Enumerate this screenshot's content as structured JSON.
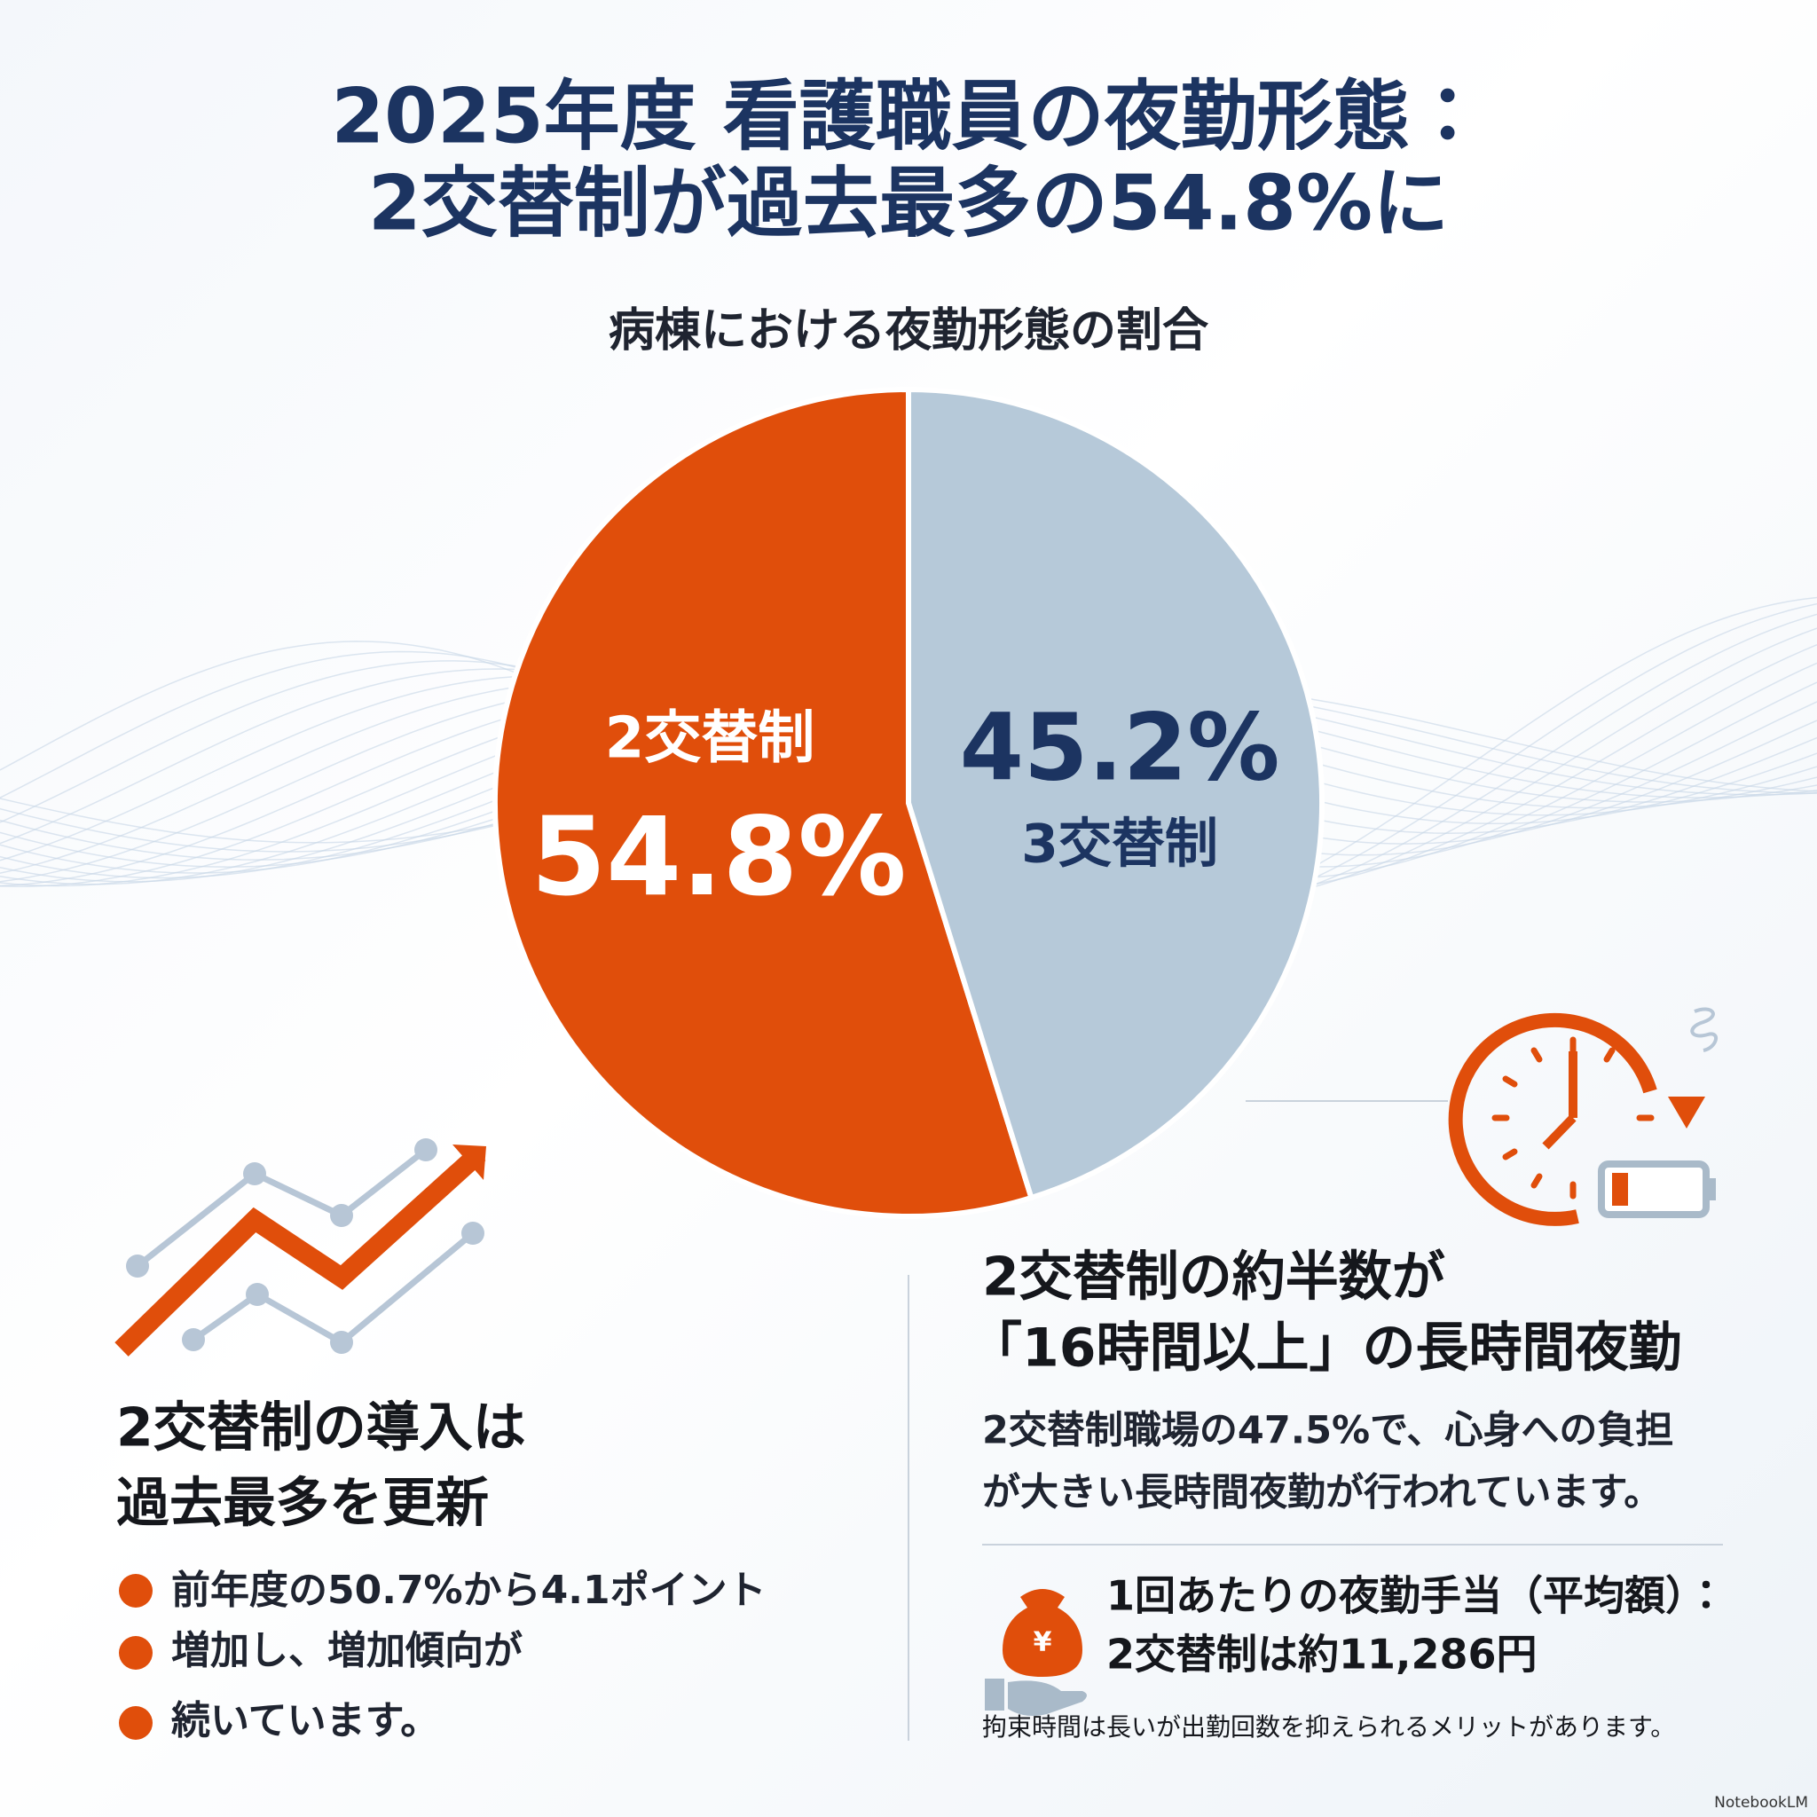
{
  "chart_data": {
    "type": "pie",
    "title": [
      "2025年度 看護職員の夜勤形態：",
      "2交替制が過去最多の54.8%に"
    ],
    "subtitle": "病棟における夜勤形態の割合",
    "categories": [
      "2交替制",
      "3交替制"
    ],
    "values": [
      54.8,
      45.2
    ],
    "value_labels": [
      "54.8%",
      "45.2%"
    ],
    "colors": [
      "#e04e0b",
      "#b6c9d9"
    ],
    "label_colors": [
      "#ffffff",
      "#1c3461"
    ]
  },
  "left_panel": {
    "heading": [
      "2交替制の導入は",
      "過去最多を更新"
    ],
    "bullets": [
      "前年度の50.7%から4.1ポイント",
      "増加し、増加傾向が",
      "続いています。"
    ]
  },
  "right_panel": {
    "heading": [
      "2交替制の約半数が",
      "「16時間以上」の長時間夜勤"
    ],
    "body": [
      "2交替制職場の47.5%で、心身への負担",
      "が大きい長時間夜勤が行われています。"
    ],
    "allowance": [
      "1回あたりの夜勤手当（平均額）：",
      "2交替制は約11,286円"
    ],
    "note": "拘束時間は長いが出勤回数を抑えられるメリットがあります。"
  },
  "footer": "NotebookLM"
}
